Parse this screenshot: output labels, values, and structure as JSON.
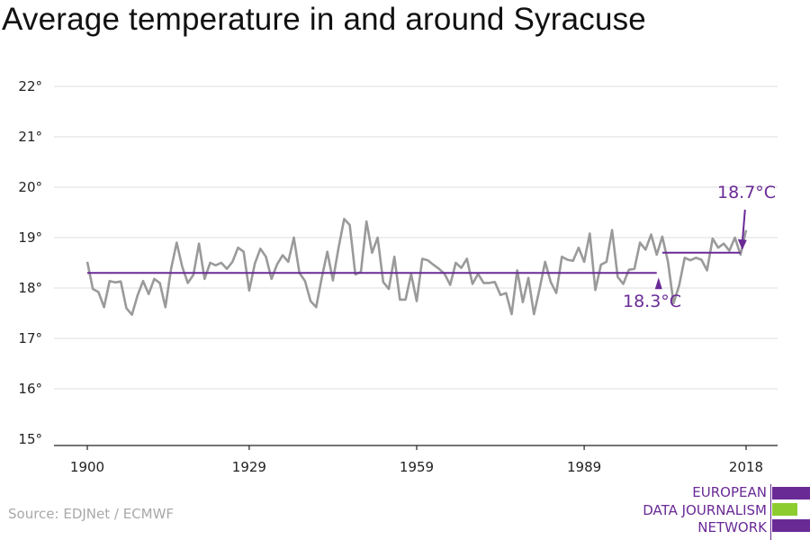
{
  "page": {
    "title": "Average temperature in and around Syracuse",
    "source": "Source: EDJNet / ECMWF"
  },
  "logo": {
    "line1": "EUROPEAN",
    "line2": "DATA JOURNALISM",
    "line3": "NETWORK",
    "colors": {
      "purple": "#6a2a96",
      "green": "#8ccc2e"
    }
  },
  "colors": {
    "series": "#9a9a9a",
    "average_line": "#6a2a96",
    "grid": "#dddddd",
    "axis": "#222222"
  },
  "chart_data": {
    "type": "line",
    "title": "Average temperature in and around Syracuse",
    "xlabel": "",
    "ylabel": "",
    "xlim": [
      1900,
      2018
    ],
    "ylim": [
      15,
      22
    ],
    "y_ticks": [
      15,
      16,
      17,
      18,
      19,
      20,
      21,
      22
    ],
    "y_tick_labels": [
      "15°",
      "16°",
      "17°",
      "18°",
      "19°",
      "20°",
      "21°",
      "22°"
    ],
    "x_ticks": [
      1900,
      1929,
      1959,
      1989,
      2018
    ],
    "x_tick_labels": [
      "1900",
      "1929",
      "1959",
      "1989",
      "2018"
    ],
    "grid": true,
    "series": [
      {
        "x": [
          1900,
          1901,
          1902,
          1903,
          1904,
          1905,
          1906,
          1907,
          1908,
          1909,
          1910,
          1911,
          1912,
          1913,
          1914,
          1915,
          1916,
          1917,
          1918,
          1919,
          1920,
          1921,
          1922,
          1923,
          1924,
          1925,
          1926,
          1927,
          1928,
          1929,
          1930,
          1931,
          1932,
          1933,
          1934,
          1935,
          1936,
          1937,
          1938,
          1939,
          1940,
          1941,
          1942,
          1943,
          1944,
          1945,
          1946,
          1947,
          1948,
          1949,
          1950,
          1951,
          1952,
          1953,
          1954,
          1955,
          1956,
          1957,
          1958,
          1959,
          1960,
          1961,
          1962,
          1963,
          1964,
          1965,
          1966,
          1967,
          1968,
          1969,
          1970,
          1971,
          1972,
          1973,
          1974,
          1975,
          1976,
          1977,
          1978,
          1979,
          1980,
          1981,
          1982,
          1983,
          1984,
          1985,
          1986,
          1987,
          1988,
          1989,
          1990,
          1991,
          1992,
          1993,
          1994,
          1995,
          1996,
          1997,
          1998,
          1999,
          2000,
          2001,
          2002,
          2003,
          2004,
          2005,
          2006,
          2007,
          2008,
          2009,
          2010,
          2011,
          2012,
          2013,
          2014,
          2015,
          2016,
          2017,
          2018
        ],
        "values": [
          18.52,
          17.98,
          17.92,
          17.62,
          18.14,
          18.11,
          18.13,
          17.6,
          17.47,
          17.85,
          18.14,
          17.88,
          18.18,
          18.1,
          17.62,
          18.38,
          18.9,
          18.42,
          18.1,
          18.26,
          18.88,
          18.18,
          18.5,
          18.45,
          18.5,
          18.38,
          18.52,
          18.8,
          18.72,
          17.95,
          18.48,
          18.78,
          18.62,
          18.18,
          18.47,
          18.65,
          18.52,
          19.0,
          18.3,
          18.14,
          17.74,
          17.62,
          18.2,
          18.72,
          18.15,
          18.8,
          19.37,
          19.25,
          18.27,
          18.32,
          19.32,
          18.7,
          19.0,
          18.12,
          17.98,
          18.62,
          17.77,
          17.77,
          18.28,
          17.74,
          18.58,
          18.55,
          18.46,
          18.38,
          18.28,
          18.06,
          18.5,
          18.4,
          18.58,
          18.08,
          18.28,
          18.1,
          18.1,
          18.12,
          17.86,
          17.9,
          17.48,
          18.35,
          17.72,
          18.2,
          17.48,
          17.98,
          18.52,
          18.12,
          17.9,
          18.62,
          18.56,
          18.54,
          18.8,
          18.52,
          19.08,
          17.96,
          18.46,
          18.52,
          19.15,
          18.22,
          18.08,
          18.36,
          18.38,
          18.9,
          18.76,
          19.06,
          18.66,
          19.02,
          18.52,
          17.7,
          18.05,
          18.6,
          18.55,
          18.6,
          18.56,
          18.35,
          18.98,
          18.8,
          18.88,
          18.74,
          19.0,
          18.66,
          19.15
        ]
      }
    ],
    "reference_lines": [
      {
        "value": 18.3,
        "x_start": 1900,
        "x_end": 2002,
        "label": "18.3°C"
      },
      {
        "value": 18.7,
        "x_start": 2003,
        "x_end": 2017,
        "label": "18.7°C"
      }
    ]
  }
}
